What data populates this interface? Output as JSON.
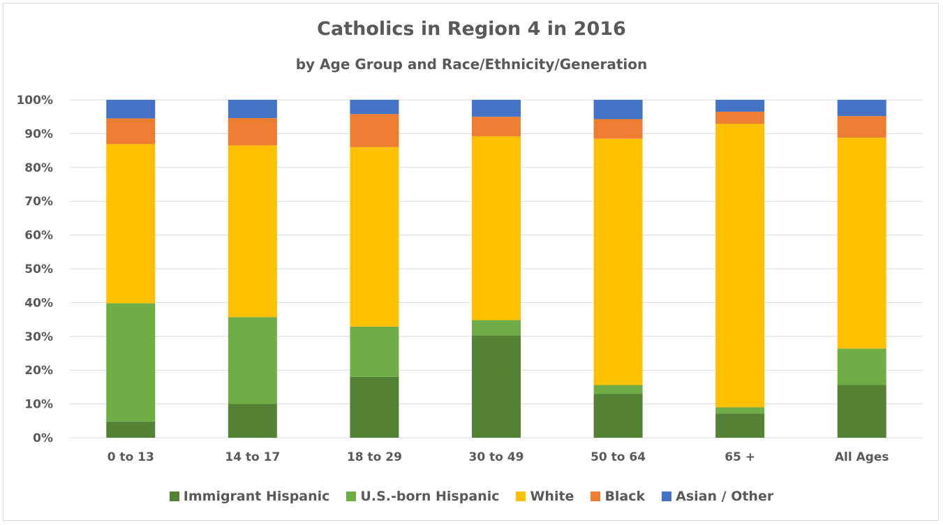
{
  "chart_data": {
    "type": "bar",
    "stacked": true,
    "title": "Catholics in Region 4 in 2016",
    "subtitle": "by Age Group and Race/Ethnicity/Generation",
    "categories": [
      "0 to 13",
      "14 to 17",
      "18 to 29",
      "30 to 49",
      "50 to 64",
      "65 +",
      "All Ages"
    ],
    "ylim": [
      0,
      100
    ],
    "yticks": [
      "0%",
      "10%",
      "20%",
      "30%",
      "40%",
      "50%",
      "60%",
      "70%",
      "80%",
      "90%",
      "100%"
    ],
    "grid": true,
    "legend_position": "bottom",
    "series": [
      {
        "name": "Immigrant Hispanic",
        "color": "#548235",
        "values": [
          4.8,
          10.0,
          18.0,
          30.3,
          13.0,
          7.2,
          15.6
        ]
      },
      {
        "name": "U.S.-born Hispanic",
        "color": "#70ad47",
        "values": [
          35.0,
          25.7,
          14.9,
          4.5,
          2.6,
          1.8,
          10.8
        ]
      },
      {
        "name": "White",
        "color": "#ffc000",
        "values": [
          47.1,
          50.8,
          53.1,
          54.4,
          72.9,
          83.9,
          62.4
        ]
      },
      {
        "name": "Black",
        "color": "#ed7d31",
        "values": [
          7.6,
          8.1,
          9.8,
          5.8,
          5.8,
          3.6,
          6.4
        ]
      },
      {
        "name": "Asian / Other",
        "color": "#4472c4",
        "values": [
          5.5,
          5.4,
          4.2,
          5.0,
          5.7,
          3.5,
          4.8
        ]
      }
    ]
  }
}
